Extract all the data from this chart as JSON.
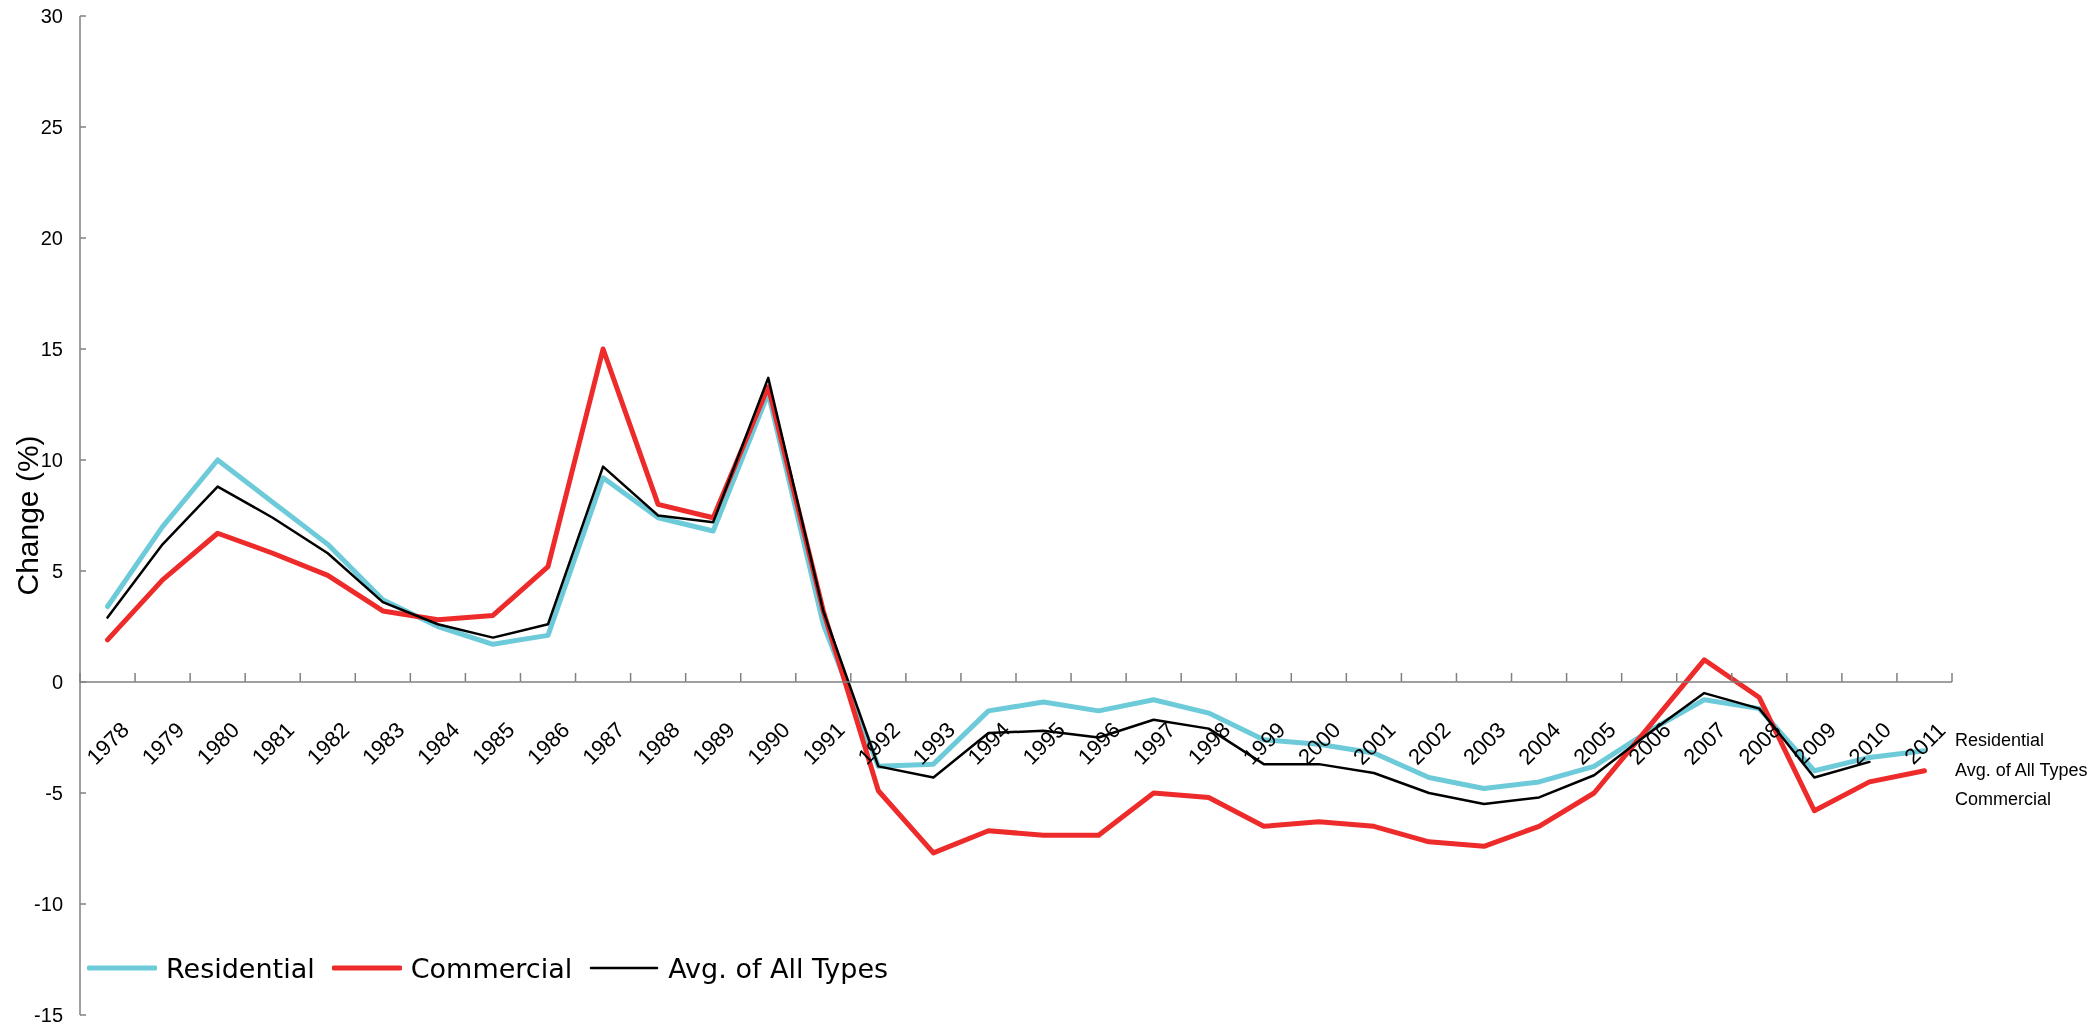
{
  "chart_data": {
    "type": "line",
    "ylabel": "Change (%)",
    "categories": [
      "1978",
      "1979",
      "1980",
      "1981",
      "1982",
      "1983",
      "1984",
      "1985",
      "1986",
      "1987",
      "1988",
      "1989",
      "1990",
      "1991",
      "1992",
      "1993",
      "1994",
      "1995",
      "1996",
      "1997",
      "1998",
      "1999",
      "2000",
      "2001",
      "2002",
      "2003",
      "2004",
      "2005",
      "2006",
      "2007",
      "2008",
      "2009",
      "2010",
      "2011"
    ],
    "series": [
      {
        "name": "Residential",
        "color": "#6dcbd9",
        "values": [
          3.4,
          7.0,
          10.0,
          8.1,
          6.2,
          3.7,
          2.5,
          1.7,
          2.1,
          9.2,
          7.4,
          6.8,
          13.0,
          2.6,
          -3.8,
          -3.7,
          -1.3,
          -0.9,
          -1.3,
          -0.8,
          -1.4,
          -2.6,
          -2.8,
          -3.2,
          -4.3,
          -4.8,
          -4.5,
          -3.8,
          -2.2,
          -0.8,
          -1.2,
          -4.0,
          -3.4,
          -3.1
        ]
      },
      {
        "name": "Commercial",
        "color": "#ee2b2b",
        "values": [
          1.9,
          4.6,
          6.7,
          5.8,
          4.8,
          3.2,
          2.8,
          3.0,
          5.2,
          15.0,
          8.0,
          7.4,
          13.3,
          3.2,
          -4.9,
          -7.7,
          -6.7,
          -6.9,
          -6.9,
          -5.0,
          -5.2,
          -6.5,
          -6.3,
          -6.5,
          -7.2,
          -7.4,
          -6.5,
          -5.0,
          -2.0,
          1.0,
          -0.7,
          -5.8,
          -4.5,
          -4.0
        ]
      },
      {
        "name": "Avg. of All Types",
        "color": "#000000",
        "values": [
          2.9,
          6.2,
          8.8,
          7.4,
          5.8,
          3.6,
          2.6,
          2.0,
          2.6,
          9.7,
          7.5,
          7.2,
          13.7,
          3.2,
          -3.8,
          -4.3,
          -2.3,
          -2.2,
          -2.5,
          -1.7,
          -2.1,
          -3.7,
          -3.7,
          -4.1,
          -5.0,
          -5.5,
          -5.2,
          -4.2,
          -2.3,
          -0.5,
          -1.2,
          -4.3,
          -3.6,
          null
        ]
      }
    ],
    "ylim": [
      -15,
      30
    ],
    "yticks": [
      -15,
      -10,
      -5,
      0,
      5,
      10,
      15,
      20,
      25,
      30
    ],
    "legend": "bottom left",
    "annotations": [
      "Residential",
      "Avg. of All Types",
      "Commercial"
    ]
  }
}
